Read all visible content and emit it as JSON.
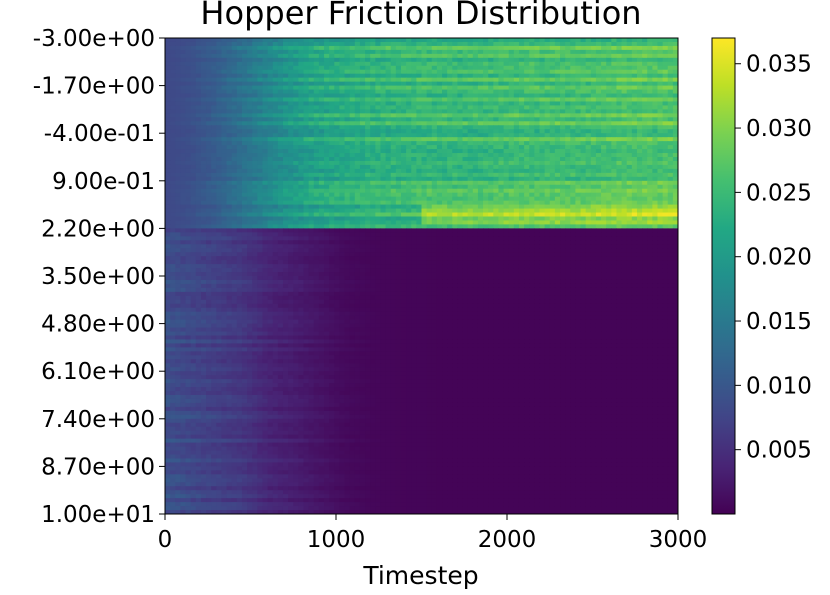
{
  "chart_data": {
    "type": "heatmap",
    "title": "Hopper Friction Distribution",
    "xlabel": "Timestep",
    "ylabel": "",
    "xlim": [
      0,
      3000
    ],
    "x_ticks": [
      0,
      1000,
      2000,
      3000
    ],
    "x_tick_labels": [
      "0",
      "1000",
      "2000",
      "3000"
    ],
    "y_tick_labels": [
      "-3.00e+00",
      "-1.70e+00",
      "-4.00e-01",
      "9.00e-01",
      "2.20e+00",
      "3.50e+00",
      "4.80e+00",
      "6.10e+00",
      "7.40e+00",
      "8.70e+00",
      "1.00e+01"
    ],
    "colormap": "viridis",
    "colorbar": {
      "range": [
        0.0,
        0.037
      ],
      "ticks": [
        0.005,
        0.01,
        0.015,
        0.02,
        0.025,
        0.03,
        0.035
      ],
      "tick_labels": [
        "0.005",
        "0.010",
        "0.015",
        "0.020",
        "0.025",
        "0.030",
        "0.035"
      ]
    },
    "grid": false,
    "regions": [
      {
        "friction_range": [
          -3.0,
          2.2
        ],
        "timestep_range": [
          0,
          3000
        ],
        "value_start": 0.008,
        "value_end": 0.027,
        "note_value_peak": 0.035
      },
      {
        "friction_range": [
          2.2,
          10.0
        ],
        "timestep_range": [
          0,
          3000
        ],
        "value_start": 0.009,
        "value_end": 0.0003
      }
    ],
    "x_values": [
      0,
      150,
      300,
      450,
      600,
      750,
      900,
      1050,
      1200,
      1500,
      1800,
      2100,
      2400,
      2700,
      3000
    ],
    "upper_band_values": [
      0.008,
      0.009,
      0.011,
      0.014,
      0.017,
      0.02,
      0.022,
      0.023,
      0.024,
      0.025,
      0.025,
      0.026,
      0.026,
      0.027,
      0.027
    ],
    "lower_band_values": [
      0.009,
      0.008,
      0.007,
      0.006,
      0.004,
      0.003,
      0.002,
      0.001,
      0.0006,
      0.0004,
      0.0003,
      0.0003,
      0.0003,
      0.0003,
      0.0003
    ]
  }
}
